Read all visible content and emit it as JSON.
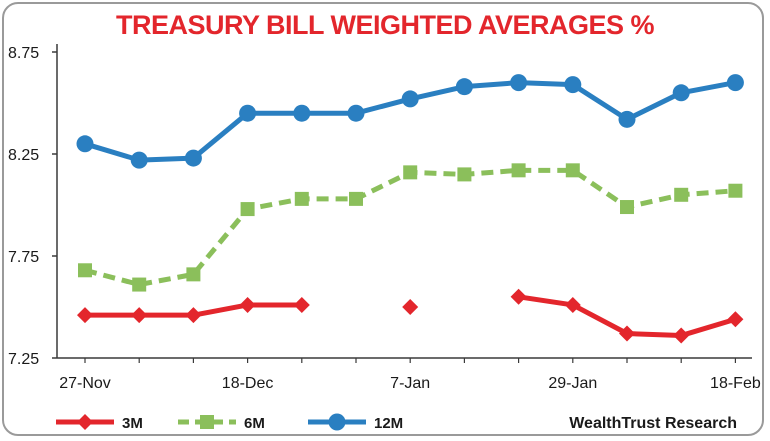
{
  "chart_data": {
    "type": "line",
    "title": "TREASURY BILL WEIGHTED AVERAGES %",
    "title_color": "#e3262c",
    "x": [
      "27-Nov",
      "4-Dec",
      "11-Dec",
      "18-Dec",
      "25-Dec",
      "1-Jan",
      "7-Jan",
      "14-Jan",
      "21-Jan",
      "29-Jan",
      "4-Feb",
      "11-Feb",
      "18-Feb"
    ],
    "x_tick_labels": [
      "27-Nov",
      "18-Dec",
      "7-Jan",
      "29-Jan",
      "18-Feb"
    ],
    "x_tick_indices": [
      0,
      3,
      6,
      9,
      12
    ],
    "y_tick_labels": [
      "8.75",
      "8.25",
      "7.75",
      "7.25"
    ],
    "ylim": [
      7.25,
      8.75
    ],
    "series": [
      {
        "name": "3M",
        "color": "#e3262c",
        "marker": "diamond",
        "dash": "solid",
        "values": [
          7.46,
          7.46,
          7.46,
          7.51,
          7.51,
          null,
          7.5,
          null,
          7.55,
          7.51,
          7.37,
          7.36,
          7.44
        ]
      },
      {
        "name": "6M",
        "color": "#8bbf5b",
        "marker": "square",
        "dash": "dashed",
        "values": [
          7.68,
          7.61,
          7.66,
          7.98,
          8.03,
          8.03,
          8.16,
          8.15,
          8.17,
          8.17,
          7.99,
          8.05,
          8.07
        ]
      },
      {
        "name": "12M",
        "color": "#2a7fc1",
        "marker": "circle",
        "dash": "solid",
        "values": [
          8.3,
          8.22,
          8.23,
          8.45,
          8.45,
          8.45,
          8.52,
          8.58,
          8.6,
          8.59,
          8.42,
          8.55,
          8.6
        ]
      }
    ],
    "source": "WealthTrust Research",
    "grid": false
  }
}
